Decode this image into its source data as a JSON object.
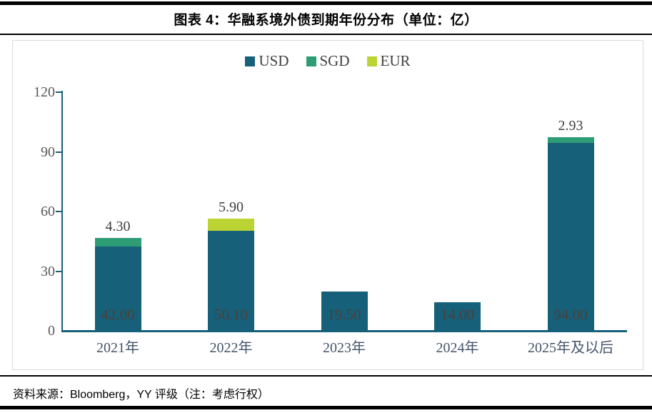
{
  "header": {
    "title": "图表 4：华融系境外债到期年份分布（单位：亿）"
  },
  "footer": {
    "source": "资料来源：Bloomberg，YY 评级（注：考虑行权）"
  },
  "chart_data": {
    "type": "bar",
    "stacked": true,
    "title": "图表 4：华融系境外债到期年份分布（单位：亿）",
    "unit": "亿",
    "categories": [
      "2021年",
      "2022年",
      "2023年",
      "2024年",
      "2025年及以后"
    ],
    "series": [
      {
        "name": "USD",
        "color": "#16607a",
        "values": [
          42.0,
          50.1,
          19.5,
          14.0,
          94.0
        ]
      },
      {
        "name": "SGD",
        "color": "#2e9c74",
        "values": [
          4.3,
          0,
          0,
          0,
          2.93
        ]
      },
      {
        "name": "EUR",
        "color": "#bcd433",
        "values": [
          0,
          5.9,
          0,
          0,
          0
        ]
      }
    ],
    "inside_bar_labels": [
      "42.00",
      "50.10",
      "19.50",
      "14.00",
      "94.00"
    ],
    "above_bar_labels": [
      "4.30",
      "5.90",
      "",
      "",
      "2.93"
    ],
    "yticks": [
      0,
      30,
      60,
      90,
      120
    ],
    "ylim": [
      0,
      120
    ],
    "xlabel": "",
    "ylabel": "",
    "grid": false,
    "legend_position": "top-center",
    "colors": {
      "axis": "#16607a",
      "ytick_label": "#595959",
      "category_label": "#44546a",
      "inside_label": "#4a403b",
      "above_label": "#3f3f3f",
      "panel_border": "#d9d9d9",
      "rule": "#000000"
    }
  }
}
